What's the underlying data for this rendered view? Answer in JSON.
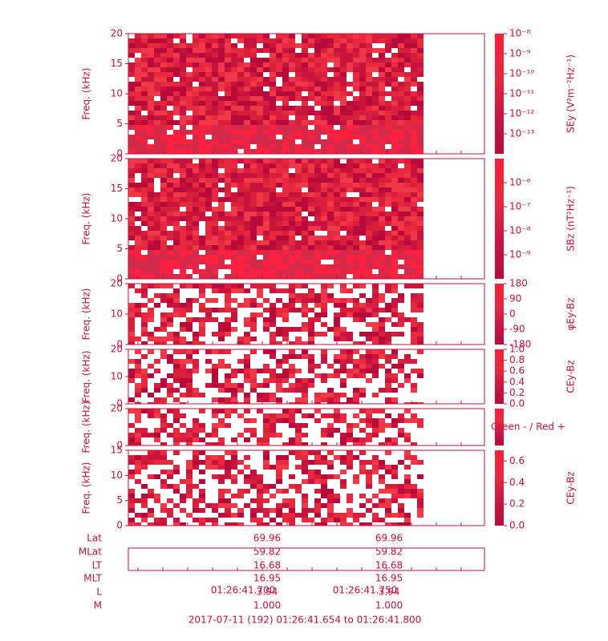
{
  "chart_data": {
    "type": "spectrogram",
    "panels": [
      {
        "ylabel": "Freq. (kHz)",
        "ylim": [
          0,
          20
        ],
        "yticks": [
          0,
          5,
          10,
          15,
          20
        ],
        "colorbar": {
          "label": "SEy (V²m⁻²Hz⁻¹)",
          "scale": "log",
          "lim": [
            1e-14,
            1e-08
          ],
          "ticks": [
            {
              "value": 1e-08,
              "label": "10⁻⁸"
            },
            {
              "value": 1e-09,
              "label": "10⁻⁹"
            },
            {
              "value": 1e-10,
              "label": "10⁻¹⁰"
            },
            {
              "value": 1e-11,
              "label": "10⁻¹¹"
            },
            {
              "value": 1e-12,
              "label": "10⁻¹²"
            },
            {
              "value": 1e-13,
              "label": "10⁻¹³"
            }
          ]
        }
      },
      {
        "ylabel": "Freq. (kHz)",
        "ylim": [
          0,
          20
        ],
        "yticks": [
          0,
          5,
          10,
          15,
          20
        ],
        "colorbar": {
          "label": "SBz (nT²Hz⁻¹)",
          "scale": "log",
          "lim": [
            1e-10,
            1e-05
          ],
          "ticks": [
            {
              "value": 1e-06,
              "label": "10⁻⁶"
            },
            {
              "value": 1e-07,
              "label": "10⁻⁷"
            },
            {
              "value": 1e-08,
              "label": "10⁻⁸"
            },
            {
              "value": 1e-09,
              "label": "10⁻⁹"
            }
          ]
        }
      },
      {
        "ylabel": "Freq. (kHz)",
        "ylim": [
          0,
          20
        ],
        "yticks": [
          0,
          10,
          20
        ],
        "colorbar": {
          "label": "φEy-Bz",
          "scale": "linear",
          "lim": [
            -180,
            180
          ],
          "ticks": [
            180,
            90,
            0,
            -90,
            -180
          ]
        }
      },
      {
        "ylabel": "Freq. (kHz)",
        "ylim": [
          0,
          20
        ],
        "yticks": [
          0,
          10,
          20
        ],
        "colorbar": {
          "label": "CEy-Bz",
          "scale": "linear",
          "lim": [
            0,
            1
          ],
          "ticks": [
            {
              "value": 1,
              "label": "1.0"
            },
            0.8,
            0.6,
            0.4,
            0.2,
            {
              "value": 0,
              "label": "0.0"
            }
          ]
        }
      },
      {
        "ylabel": "Freq. (kHz)",
        "ylim": [
          0,
          20
        ],
        "yticks": [
          0,
          20
        ],
        "colorbar": {
          "label": "Green - / Red +",
          "scale": "none"
        }
      },
      {
        "ylabel": "Freq. (kHz)",
        "ylim": [
          0,
          15
        ],
        "yticks": [
          0,
          5,
          10,
          15
        ],
        "colorbar": {
          "label": "CEy-Bz",
          "scale": "linear",
          "lim": [
            0,
            0.7
          ],
          "ticks": [
            0.6,
            0.4,
            0.2,
            {
              "value": 0,
              "label": "0.0"
            }
          ]
        }
      }
    ],
    "ephemeris": [
      {
        "label": "Lat",
        "values": [
          "69.96",
          "69.96"
        ]
      },
      {
        "label": "MLat",
        "values": [
          "59.82",
          "59.82"
        ]
      },
      {
        "label": "LT",
        "values": [
          "16.68",
          "16.68"
        ]
      },
      {
        "label": "MLT",
        "values": [
          "16.95",
          "16.95"
        ]
      },
      {
        "label": "L",
        "values": [
          "3.94",
          "3.94"
        ]
      },
      {
        "label": "M",
        "values": [
          "1.000",
          "1.000"
        ]
      }
    ],
    "times": [
      "01:26:41.700",
      "01:26:41.750"
    ],
    "title": "2017-07-11 (192) 01:26:41.654 to 01:26:41.800"
  }
}
